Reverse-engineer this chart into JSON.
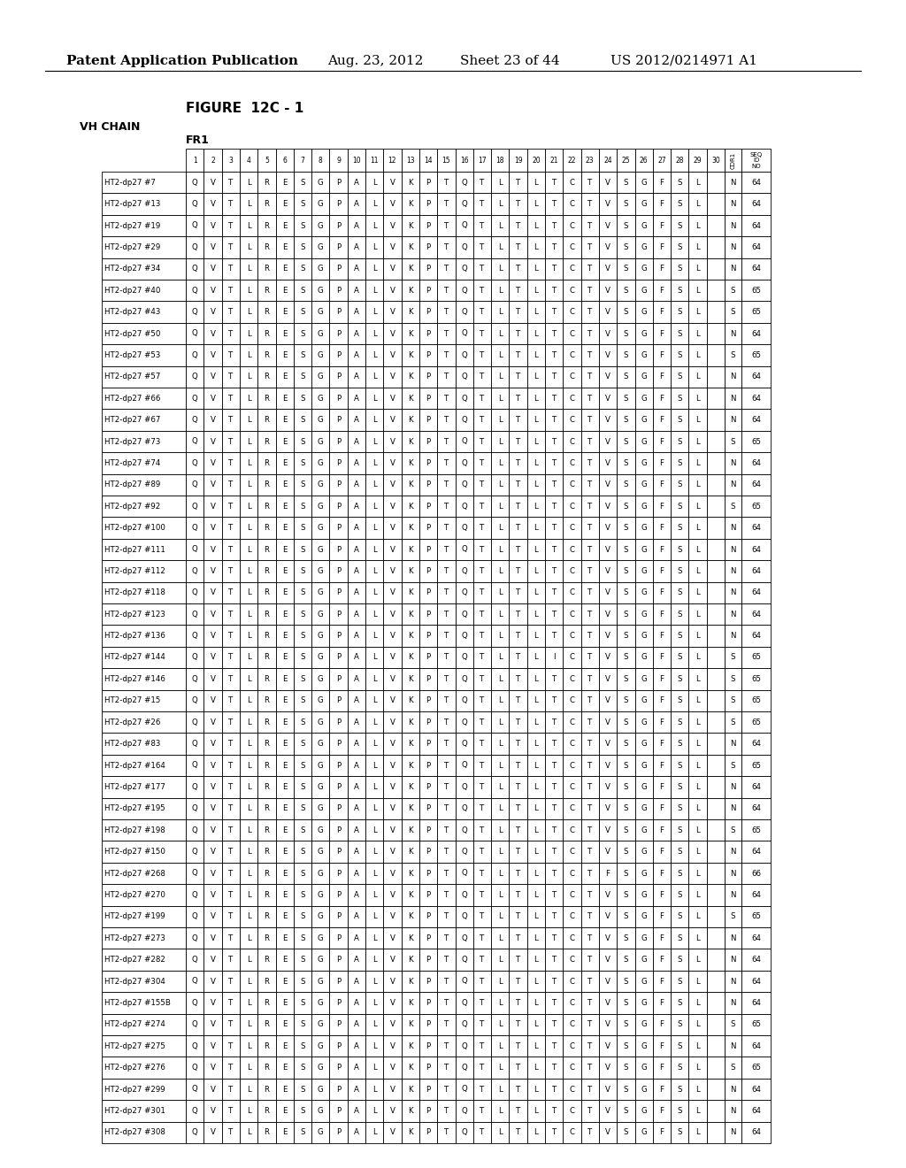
{
  "header_title": "Patent Application Publication",
  "header_date": "Aug. 23, 2012",
  "header_sheet": "Sheet 23 of 44",
  "header_patent": "US 2012/0214971 A1",
  "figure_label": "FIGURE  12C - 1",
  "chain_label": "VH CHAIN",
  "region_label": "FR1",
  "rows": [
    {
      "name": "HT2-dp27 #7",
      "seq": "QVTLRESGPALVKPTQTLTLTCTVSGFSL",
      "cdr1": "N",
      "seqid": 64
    },
    {
      "name": "HT2-dp27 #13",
      "seq": "QVTLRESGPALVKPTQTLTLTCTVSGFSL",
      "cdr1": "N",
      "seqid": 64
    },
    {
      "name": "HT2-dp27 #19",
      "seq": "QVTLRESGPALVKPTQTLTLTCTVSGFSL",
      "cdr1": "N",
      "seqid": 64
    },
    {
      "name": "HT2-dp27 #29",
      "seq": "QVTLRESGPALVKPTQTLTLTCTVSGFSL",
      "cdr1": "N",
      "seqid": 64
    },
    {
      "name": "HT2-dp27 #34",
      "seq": "QVTLRESGPALVKPTQTLTLTCTVSGFSL",
      "cdr1": "N",
      "seqid": 64
    },
    {
      "name": "HT2-dp27 #40",
      "seq": "QVTLRESGPALVKPTQTLTLTCTVSGFSL",
      "cdr1": "S",
      "seqid": 65
    },
    {
      "name": "HT2-dp27 #43",
      "seq": "QVTLRESGPALVKPTQTLTLTCTVSGFSL",
      "cdr1": "S",
      "seqid": 65
    },
    {
      "name": "HT2-dp27 #50",
      "seq": "QVTLRESGPALVKPTQTLTLTCTVSGFSL",
      "cdr1": "N",
      "seqid": 64
    },
    {
      "name": "HT2-dp27 #53",
      "seq": "QVTLRESGPALVKPTQTLTLTCTVSGFSL",
      "cdr1": "S",
      "seqid": 65
    },
    {
      "name": "HT2-dp27 #57",
      "seq": "QVTLRESGPALVKPTQTLTLTCTVSGFSL",
      "cdr1": "N",
      "seqid": 64
    },
    {
      "name": "HT2-dp27 #66",
      "seq": "QVTLRESGPALVKPTQTLTLTCTVSGFSL",
      "cdr1": "N",
      "seqid": 64
    },
    {
      "name": "HT2-dp27 #67",
      "seq": "QVTLRESGPALVKPTQTLTLTCTVSGFSL",
      "cdr1": "N",
      "seqid": 64
    },
    {
      "name": "HT2-dp27 #73",
      "seq": "QVTLRESGPALVKPTQTLTLTCTVSGFSL",
      "cdr1": "S",
      "seqid": 65
    },
    {
      "name": "HT2-dp27 #74",
      "seq": "QVTLRESGPALVKPTQTLTLTCTVSGFSL",
      "cdr1": "N",
      "seqid": 64
    },
    {
      "name": "HT2-dp27 #89",
      "seq": "QVTLRESGPALVKPTQTLTLTCTVSGFSL",
      "cdr1": "N",
      "seqid": 64
    },
    {
      "name": "HT2-dp27 #92",
      "seq": "QVTLRESGPALVKPTQTLTLTCTVSGFSL",
      "cdr1": "S",
      "seqid": 65
    },
    {
      "name": "HT2-dp27 #100",
      "seq": "QVTLRESGPALVKPTQTLTLTCTVSGFSL",
      "cdr1": "N",
      "seqid": 64
    },
    {
      "name": "HT2-dp27 #111",
      "seq": "QVTLRESGPALVKPTQTLTLTCTVSGFSL",
      "cdr1": "N",
      "seqid": 64
    },
    {
      "name": "HT2-dp27 #112",
      "seq": "QVTLRESGPALVKPTQTLTLTCTVSGFSL",
      "cdr1": "N",
      "seqid": 64
    },
    {
      "name": "HT2-dp27 #118",
      "seq": "QVTLRESGPALVKPTQTLTLTCTVSGFSL",
      "cdr1": "N",
      "seqid": 64
    },
    {
      "name": "HT2-dp27 #123",
      "seq": "QVTLRESGPALVKPTQTLTLTCTVSGFSL",
      "cdr1": "N",
      "seqid": 64
    },
    {
      "name": "HT2-dp27 #136",
      "seq": "QVTLRESGPALVKPTQTLTLTCTVSGFSL",
      "cdr1": "N",
      "seqid": 64
    },
    {
      "name": "HT2-dp27 #144",
      "seq": "QVTLRESGPALVKPTQTLTLICTVSGFSL",
      "cdr1": "S",
      "seqid": 65
    },
    {
      "name": "HT2-dp27 #146",
      "seq": "QVTLRESGPALVKPTQTLTLTCTVSGFSL",
      "cdr1": "S",
      "seqid": 65
    },
    {
      "name": "HT2-dp27 #15",
      "seq": "QVTLRESGPALVKPTQTLTLTCTVSGFSL",
      "cdr1": "S",
      "seqid": 65
    },
    {
      "name": "HT2-dp27 #26",
      "seq": "QVTLRESGPALVKPTQTLTLTCTVSGFSL",
      "cdr1": "S",
      "seqid": 65
    },
    {
      "name": "HT2-dp27 #83",
      "seq": "QVTLRESGPALVKPTQTLTLTCTVSGFSL",
      "cdr1": "N",
      "seqid": 64
    },
    {
      "name": "HT2-dp27 #164",
      "seq": "QVTLRESGPALVKPTQTLTLTCTVSGFSL",
      "cdr1": "S",
      "seqid": 65
    },
    {
      "name": "HT2-dp27 #177",
      "seq": "QVTLRESGPALVKPTQTLTLTCTVSGFSL",
      "cdr1": "N",
      "seqid": 64
    },
    {
      "name": "HT2-dp27 #195",
      "seq": "QVTLRESGPALVKPTQTLTLTCTVSGFSL",
      "cdr1": "N",
      "seqid": 64
    },
    {
      "name": "HT2-dp27 #198",
      "seq": "QVTLRESGPALVKPTQTLTLTCTVSGFSL",
      "cdr1": "S",
      "seqid": 65
    },
    {
      "name": "HT2-dp27 #150",
      "seq": "QVTLRESGPALVKPTQTLTLTCTVSGFSL",
      "cdr1": "N",
      "seqid": 64
    },
    {
      "name": "HT2-dp27 #268",
      "seq": "QVTLRESGPALVKPTQTLTLTCTFSGFSL",
      "cdr1": "N",
      "seqid": 66
    },
    {
      "name": "HT2-dp27 #270",
      "seq": "QVTLRESGPALVKPTQTLTLTCTVSGFSL",
      "cdr1": "N",
      "seqid": 64
    },
    {
      "name": "HT2-dp27 #199",
      "seq": "QVTLRESGPALVKPTQTLTLTCTVSGFSL",
      "cdr1": "S",
      "seqid": 65
    },
    {
      "name": "HT2-dp27 #273",
      "seq": "QVTLRESGPALVKPTQTLTLTCTVSGFSL",
      "cdr1": "N",
      "seqid": 64
    },
    {
      "name": "HT2-dp27 #282",
      "seq": "QVTLRESGPALVKPTQTLTLTCTVSGFSL",
      "cdr1": "N",
      "seqid": 64
    },
    {
      "name": "HT2-dp27 #304",
      "seq": "QVTLRESGPALVKPTQTLTLTCTVSGFSL",
      "cdr1": "N",
      "seqid": 64
    },
    {
      "name": "HT2-dp27 #155B",
      "seq": "QVTLRESGPALVKPTQTLTLTCTVSGFSL",
      "cdr1": "N",
      "seqid": 64
    },
    {
      "name": "HT2-dp27 #274",
      "seq": "QVTLRESGPALVKPTQTLTLTCTVSGFSL",
      "cdr1": "S",
      "seqid": 65
    },
    {
      "name": "HT2-dp27 #275",
      "seq": "QVTLRESGPALVKPTQTLTLTCTVSGFSL",
      "cdr1": "N",
      "seqid": 64
    },
    {
      "name": "HT2-dp27 #276",
      "seq": "QVTLRESGPALVKPTQTLTLTCTVSGFSL",
      "cdr1": "S",
      "seqid": 65
    },
    {
      "name": "HT2-dp27 #299",
      "seq": "QVTLRESGPALVKPTQTLTLTCTVSGFSL",
      "cdr1": "N",
      "seqid": 64
    },
    {
      "name": "HT2-dp27 #301",
      "seq": "QVTLRESGPALVKPTQTLTLTCTVSGFSL",
      "cdr1": "N",
      "seqid": 64
    },
    {
      "name": "HT2-dp27 #308",
      "seq": "QVTLRESGPALVKPTQTLTLTCTVSGFSL",
      "cdr1": "N",
      "seqid": 64
    }
  ]
}
